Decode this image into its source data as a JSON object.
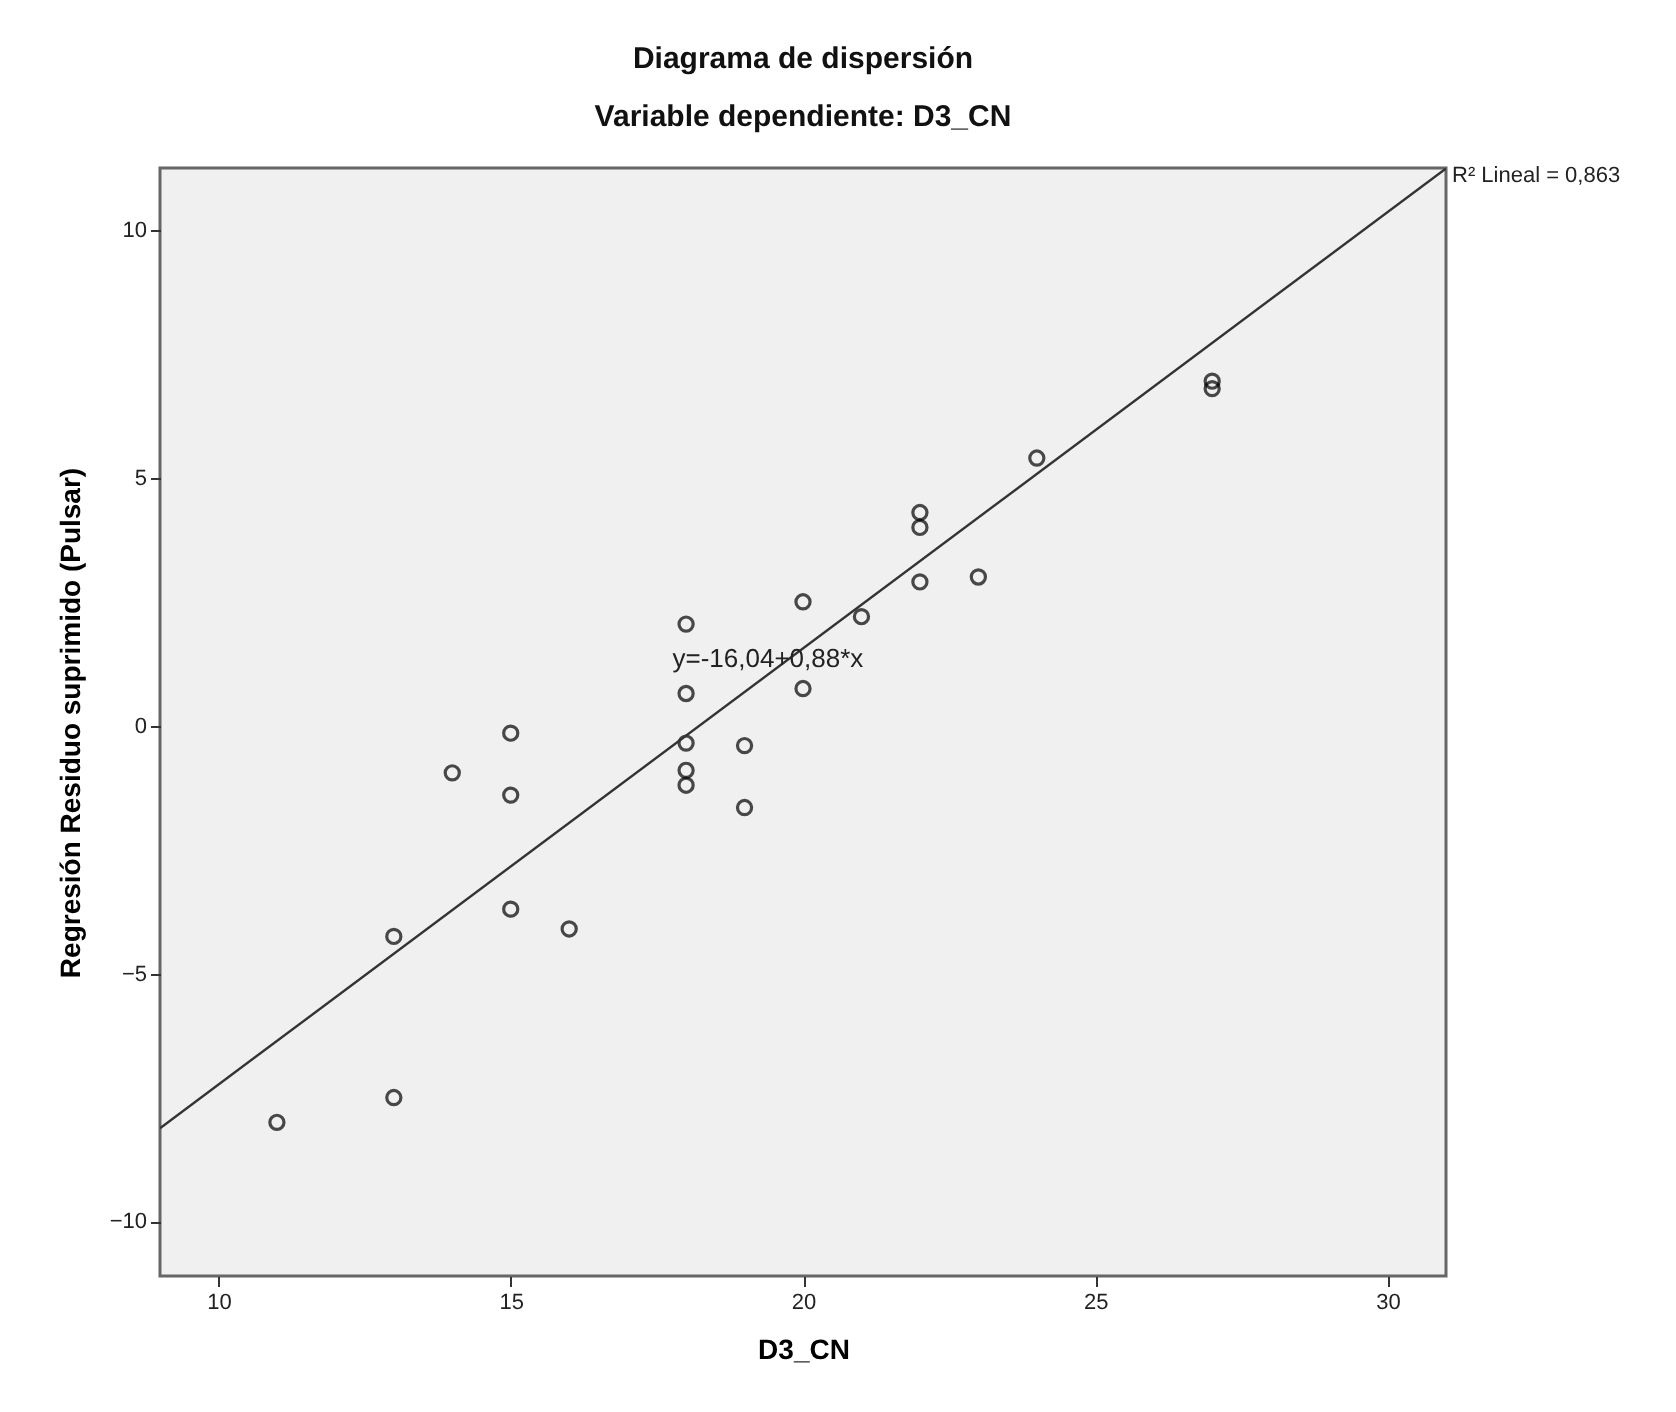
{
  "chart_data": {
    "type": "scatter",
    "title": "Diagrama de dispersión",
    "subtitle": "Variable dependiente: D3_CN",
    "xlabel": "D3_CN",
    "ylabel": "Regresión Residuo suprimido (Pulsar)",
    "xlim": [
      9,
      31
    ],
    "ylim": [
      -11.1,
      11.25
    ],
    "xticks": [
      10,
      15,
      20,
      25,
      30
    ],
    "yticks": [
      -10,
      -5,
      0,
      5,
      10
    ],
    "grid": false,
    "marker": "circle",
    "series": [
      {
        "color": "#000000",
        "x": [
          11,
          13,
          13,
          14,
          15,
          15,
          15,
          16,
          18,
          18,
          18,
          18,
          18,
          19,
          19,
          20,
          20,
          21,
          22,
          22,
          22,
          23,
          24,
          27,
          27
        ],
        "values": [
          -8.0,
          -7.5,
          -4.25,
          -0.95,
          -3.7,
          -1.4,
          -0.15,
          -4.1,
          -1.2,
          -0.9,
          -0.35,
          0.65,
          2.05,
          -1.65,
          -0.4,
          0.75,
          2.5,
          2.2,
          2.9,
          4.0,
          4.3,
          3.0,
          5.4,
          6.8,
          6.95
        ]
      },
      {
        "type": "line",
        "marker": "none",
        "color": "#333333",
        "x": [
          9,
          31
        ],
        "values": [
          -8.12,
          11.24
        ]
      }
    ],
    "annotations": [
      {
        "text": "y=-16,04+0,88*x",
        "x": 19.4,
        "y": 1.35
      },
      "R² Lineal = 0,863"
    ]
  }
}
